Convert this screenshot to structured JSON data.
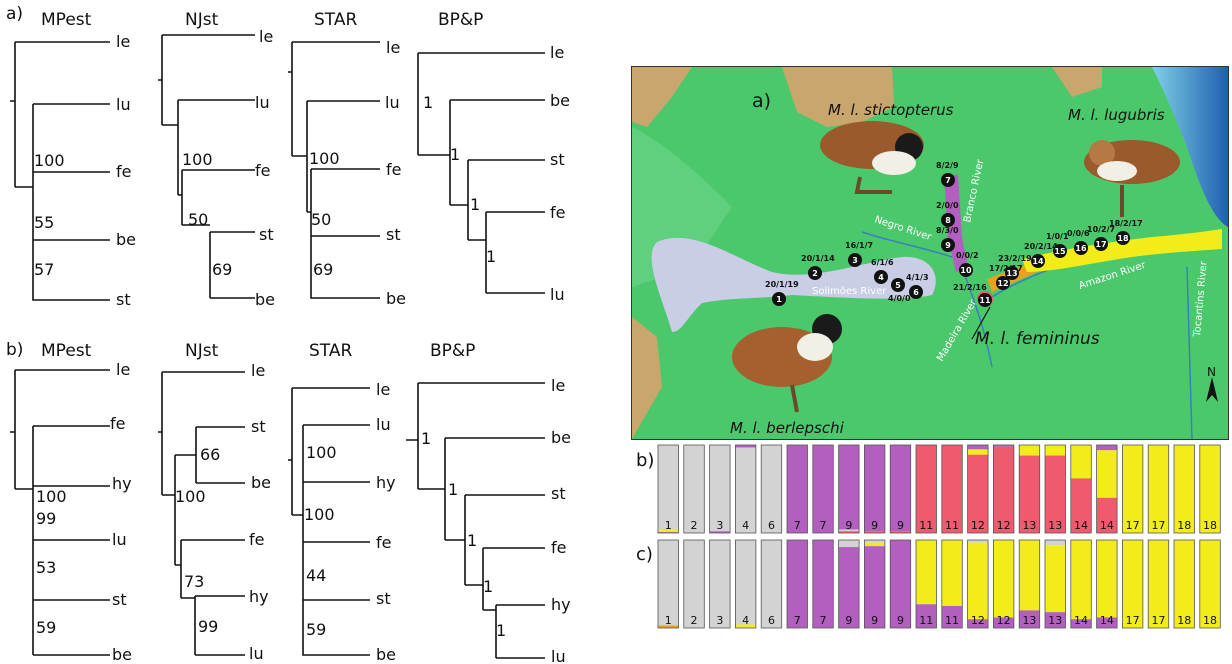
{
  "panel_labels": {
    "a": "a)",
    "b": "b)"
  },
  "trees_a": {
    "titles": [
      "MPest",
      "NJst",
      "STAR",
      "BP&P"
    ],
    "mpest": {
      "tips": [
        "le",
        "lu",
        "fe",
        "be",
        "st"
      ],
      "support": [
        "100",
        "55",
        "57"
      ]
    },
    "njst": {
      "tips": [
        "le",
        "lu",
        "fe",
        "st",
        "be"
      ],
      "support": [
        "100",
        "50",
        "69"
      ]
    },
    "star": {
      "tips": [
        "le",
        "lu",
        "fe",
        "st",
        "be"
      ],
      "support": [
        "100",
        "50",
        "69"
      ]
    },
    "bpp": {
      "tips": [
        "le",
        "be",
        "st",
        "fe",
        "lu"
      ],
      "support": [
        "1",
        "1",
        "1",
        "1"
      ]
    }
  },
  "trees_b": {
    "titles": [
      "MPest",
      "NJst",
      "STAR",
      "BP&P"
    ],
    "mpest": {
      "tips": [
        "le",
        "fe",
        "hy",
        "lu",
        "st",
        "be"
      ],
      "support": [
        "100",
        "99",
        "53",
        "59"
      ]
    },
    "njst": {
      "tips": [
        "le",
        "st",
        "be",
        "fe",
        "hy",
        "lu"
      ],
      "support": [
        "66",
        "100",
        "73",
        "99"
      ]
    },
    "star": {
      "tips": [
        "le",
        "lu",
        "hy",
        "fe",
        "st",
        "be"
      ],
      "support": [
        "100",
        "100",
        "44",
        "59"
      ]
    },
    "bpp": {
      "tips": [
        "le",
        "be",
        "st",
        "fe",
        "hy",
        "lu"
      ],
      "support": [
        "1",
        "1",
        "1",
        "1",
        "1"
      ]
    }
  },
  "map": {
    "panel_label": "a)",
    "taxa": [
      "M. l. stictopterus",
      "M. l. lugubris",
      "M. l. berlepschi",
      "M. l. femininus"
    ],
    "rivers": [
      "Negro River",
      "Branco River",
      "Solimões River",
      "Madeira River",
      "Amazon River",
      "Tocantins River"
    ],
    "north": "N",
    "sites": [
      {
        "n": "1",
        "label": "20/1/19"
      },
      {
        "n": "2",
        "label": "20/1/14"
      },
      {
        "n": "3",
        "label": "16/1/7"
      },
      {
        "n": "4",
        "label": "6/1/6"
      },
      {
        "n": "5",
        "label": "4/0/0"
      },
      {
        "n": "6",
        "label": "4/1/3"
      },
      {
        "n": "7",
        "label": "8/2/9"
      },
      {
        "n": "8",
        "label": "2/0/0"
      },
      {
        "n": "9",
        "label": "8/3/0"
      },
      {
        "n": "10",
        "label": "0/0/2"
      },
      {
        "n": "11",
        "label": "21/2/16"
      },
      {
        "n": "12",
        "label": "17/2/17"
      },
      {
        "n": "13",
        "label": "23/2/19"
      },
      {
        "n": "14",
        "label": "20/2/14"
      },
      {
        "n": "15",
        "label": "1/0/1"
      },
      {
        "n": "16",
        "label": "0/0/6"
      },
      {
        "n": "17",
        "label": "10/2/7"
      },
      {
        "n": "18",
        "label": "18/2/17"
      }
    ]
  },
  "structure": {
    "b_label": "b)",
    "c_label": "c)",
    "colors": {
      "grey": "#d3d3d3",
      "purple": "#b35fc0",
      "red": "#ef5a6f",
      "yellow": "#f2ec1b",
      "orange": "#e8a21d"
    },
    "columns": [
      "1",
      "2",
      "3",
      "4",
      "6",
      "7",
      "7",
      "9",
      "9",
      "9",
      "11",
      "11",
      "12",
      "12",
      "13",
      "13",
      "14",
      "14",
      "17",
      "17",
      "18",
      "18"
    ],
    "b_stacks": [
      [
        [
          "grey",
          0.96
        ],
        [
          "yellow",
          0.03
        ],
        [
          "purple",
          0.01
        ]
      ],
      [
        [
          "grey",
          1.0
        ]
      ],
      [
        [
          "grey",
          0.98
        ],
        [
          "purple",
          0.02
        ]
      ],
      [
        [
          "purple",
          0.03
        ],
        [
          "grey",
          0.97
        ]
      ],
      [
        [
          "grey",
          1.0
        ]
      ],
      [
        [
          "purple",
          1.0
        ]
      ],
      [
        [
          "purple",
          1.0
        ]
      ],
      [
        [
          "purple",
          0.96
        ],
        [
          "grey",
          0.02
        ],
        [
          "red",
          0.02
        ]
      ],
      [
        [
          "purple",
          0.98
        ],
        [
          "red",
          0.02
        ]
      ],
      [
        [
          "purple",
          0.98
        ],
        [
          "red",
          0.02
        ]
      ],
      [
        [
          "red",
          1.0
        ]
      ],
      [
        [
          "red",
          1.0
        ]
      ],
      [
        [
          "purple",
          0.05
        ],
        [
          "yellow",
          0.06
        ],
        [
          "red",
          0.89
        ]
      ],
      [
        [
          "purple",
          0.02
        ],
        [
          "red",
          0.98
        ]
      ],
      [
        [
          "yellow",
          0.12
        ],
        [
          "red",
          0.88
        ]
      ],
      [
        [
          "yellow",
          0.12
        ],
        [
          "red",
          0.88
        ]
      ],
      [
        [
          "yellow",
          0.38
        ],
        [
          "red",
          0.62
        ]
      ],
      [
        [
          "purple",
          0.06
        ],
        [
          "yellow",
          0.54
        ],
        [
          "red",
          0.4
        ]
      ],
      [
        [
          "yellow",
          1.0
        ]
      ],
      [
        [
          "yellow",
          1.0
        ]
      ],
      [
        [
          "yellow",
          1.0
        ]
      ],
      [
        [
          "yellow",
          1.0
        ]
      ]
    ],
    "c_stacks": [
      [
        [
          "grey",
          0.97
        ],
        [
          "orange",
          0.03
        ]
      ],
      [
        [
          "grey",
          1.0
        ]
      ],
      [
        [
          "grey",
          1.0
        ]
      ],
      [
        [
          "grey",
          0.96
        ],
        [
          "yellow",
          0.04
        ]
      ],
      [
        [
          "grey",
          1.0
        ]
      ],
      [
        [
          "purple",
          1.0
        ]
      ],
      [
        [
          "purple",
          1.0
        ]
      ],
      [
        [
          "grey",
          0.08
        ],
        [
          "purple",
          0.92
        ]
      ],
      [
        [
          "grey",
          0.03
        ],
        [
          "yellow",
          0.04
        ],
        [
          "purple",
          0.93
        ]
      ],
      [
        [
          "purple",
          1.0
        ]
      ],
      [
        [
          "yellow",
          0.73
        ],
        [
          "purple",
          0.27
        ]
      ],
      [
        [
          "yellow",
          0.75
        ],
        [
          "purple",
          0.25
        ]
      ],
      [
        [
          "grey",
          0.03
        ],
        [
          "yellow",
          0.87
        ],
        [
          "purple",
          0.1
        ]
      ],
      [
        [
          "yellow",
          0.88
        ],
        [
          "purple",
          0.12
        ]
      ],
      [
        [
          "yellow",
          0.8
        ],
        [
          "purple",
          0.2
        ]
      ],
      [
        [
          "grey",
          0.06
        ],
        [
          "yellow",
          0.76
        ],
        [
          "purple",
          0.18
        ]
      ],
      [
        [
          "yellow",
          0.9
        ],
        [
          "purple",
          0.1
        ]
      ],
      [
        [
          "yellow",
          0.88
        ],
        [
          "purple",
          0.12
        ]
      ],
      [
        [
          "yellow",
          1.0
        ]
      ],
      [
        [
          "yellow",
          1.0
        ]
      ],
      [
        [
          "yellow",
          1.0
        ]
      ],
      [
        [
          "yellow",
          1.0
        ]
      ]
    ]
  }
}
